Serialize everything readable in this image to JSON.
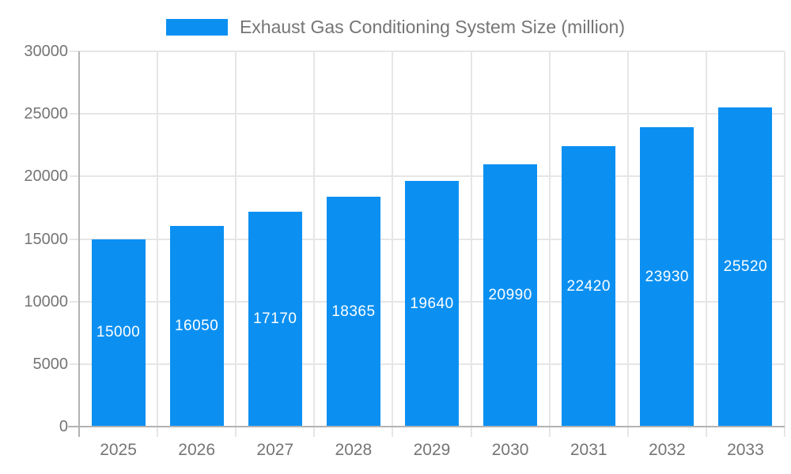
{
  "legend": {
    "label": "Exhaust Gas Conditioning System Size (million)"
  },
  "chart_data": {
    "type": "bar",
    "title": "Exhaust Gas Conditioning System Size (million)",
    "series_name": "Exhaust Gas Conditioning System Size (million)",
    "categories": [
      "2025",
      "2026",
      "2027",
      "2028",
      "2029",
      "2030",
      "2031",
      "2032",
      "2033"
    ],
    "values": [
      15000,
      16050,
      17170,
      18365,
      19640,
      20990,
      22420,
      23930,
      25520
    ],
    "value_labels": [
      "15000",
      "16050",
      "17170",
      "18365",
      "19640",
      "20990",
      "22420",
      "23930",
      "25520"
    ],
    "xlabel": "",
    "ylabel": "",
    "ylim": [
      0,
      30000
    ],
    "yticks": [
      0,
      5000,
      10000,
      15000,
      20000,
      25000,
      30000
    ],
    "grid": true,
    "legend_position": "top",
    "colors": {
      "bar": "#0b90f2",
      "gridline": "#e6e6e6",
      "axis_line": "#b3b3b3",
      "axis_label": "#757575",
      "value_label": "#ffffff",
      "background": "#ffffff"
    }
  }
}
